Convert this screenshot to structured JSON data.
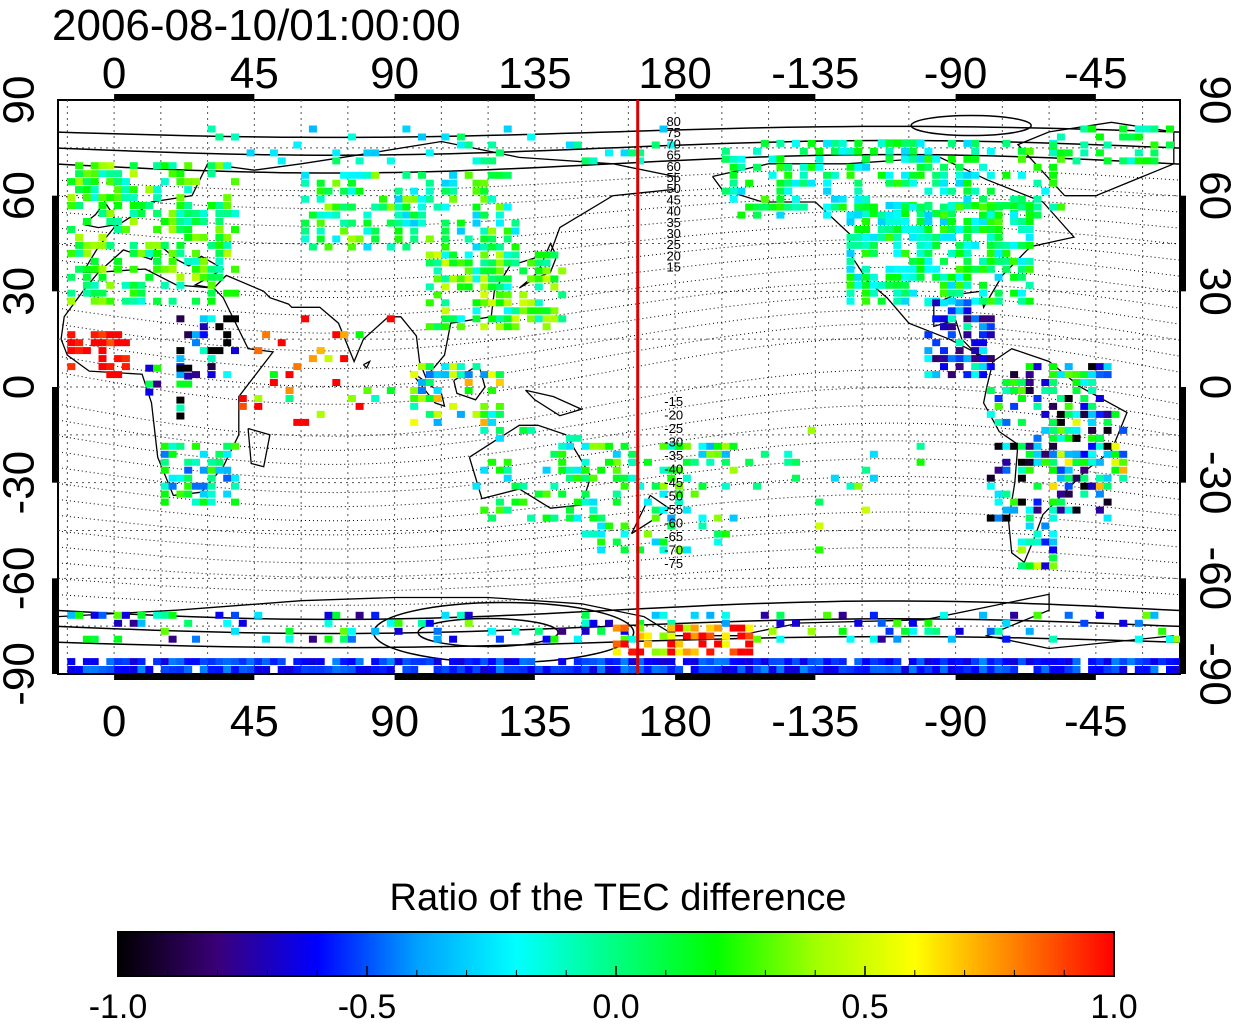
{
  "title": "2006-08-10/01:00:00",
  "map": {
    "lon_ticks_top": [
      "0",
      "45",
      "90",
      "135",
      "180",
      "-135",
      "-90",
      "-45"
    ],
    "lon_ticks_bottom": [
      "0",
      "45",
      "90",
      "135",
      "180",
      "-135",
      "-90",
      "-45"
    ],
    "lon_tick_values": [
      0,
      45,
      90,
      135,
      180,
      225,
      270,
      315
    ],
    "lon_range": [
      -18,
      342
    ],
    "lat_ticks_left": [
      "90",
      "60",
      "30",
      "0",
      "-30",
      "-60",
      "-90"
    ],
    "lat_ticks_right": [
      "90",
      "60",
      "30",
      "0",
      "-30",
      "-60",
      "-90"
    ],
    "lat_tick_values": [
      90,
      60,
      30,
      0,
      -30,
      -60,
      -90
    ],
    "lat_range": [
      -90,
      90
    ],
    "red_line_lon": 168,
    "contour_labels_north": [
      "80",
      "75",
      "70",
      "65",
      "60",
      "55",
      "50",
      "45",
      "40",
      "35",
      "30",
      "25",
      "20",
      "15"
    ],
    "contour_labels_south": [
      "-15",
      "-20",
      "-25",
      "-30",
      "-35",
      "-40",
      "-45",
      "-50",
      "-55",
      "-60",
      "-65",
      "-70",
      "-75"
    ],
    "grid": true
  },
  "colorbar": {
    "title": "Ratio of the TEC difference",
    "ticks": [
      "-1.0",
      "-0.5",
      "0.0",
      "0.5",
      "1.0"
    ],
    "tick_values": [
      -1.0,
      -0.5,
      0.0,
      0.5,
      1.0
    ],
    "range": [
      -1.0,
      1.0
    ],
    "colors": [
      "#000000",
      "#3a0078",
      "#0000ff",
      "#00a0ff",
      "#00ffff",
      "#00ff80",
      "#00ff00",
      "#a0ff00",
      "#ffff00",
      "#ff8000",
      "#ff0000"
    ]
  }
}
